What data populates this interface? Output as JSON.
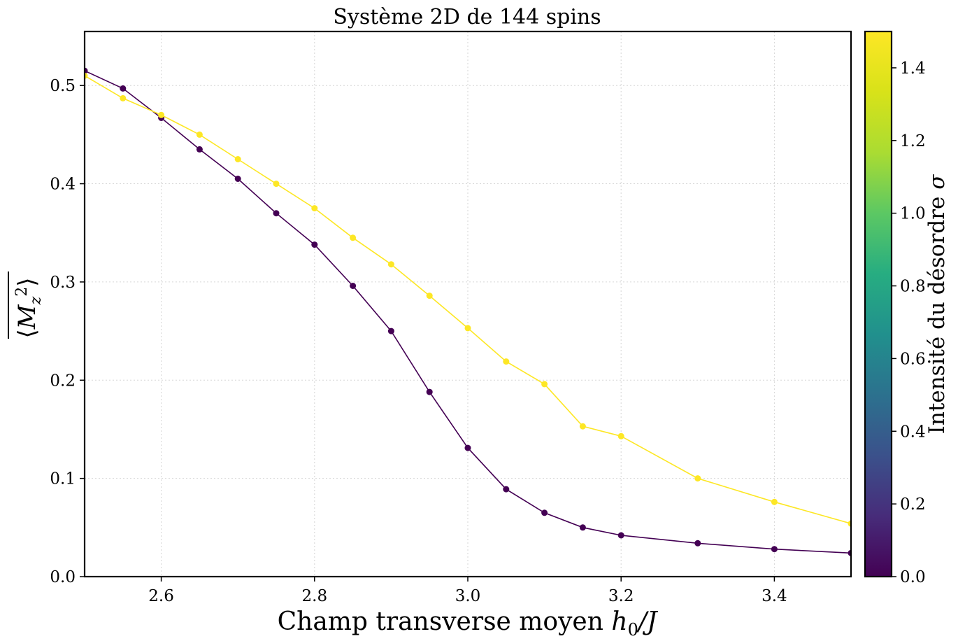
{
  "chart_data": {
    "type": "line",
    "title": "Système 2D de 144 spins",
    "xlabel": "Champ transverse moyen h₀/J",
    "ylabel": "⟨M_z²⟩",
    "xlim": [
      2.5,
      3.5
    ],
    "ylim": [
      0.0,
      0.555
    ],
    "x_ticks": [
      "2.6",
      "2.8",
      "3.0",
      "3.2",
      "3.4"
    ],
    "y_ticks": [
      "0.0",
      "0.1",
      "0.2",
      "0.3",
      "0.4",
      "0.5"
    ],
    "grid": true,
    "colormap": "viridis",
    "colorbar": {
      "label": "Intensité du désordre σ",
      "range": [
        0.0,
        1.5
      ],
      "ticks": [
        "0.0",
        "0.2",
        "0.4",
        "0.6",
        "0.8",
        "1.0",
        "1.2",
        "1.4"
      ]
    },
    "x": [
      2.5,
      2.55,
      2.6,
      2.65,
      2.7,
      2.75,
      2.8,
      2.85,
      2.9,
      2.95,
      3.0,
      3.05,
      3.1,
      3.15,
      3.2,
      3.3,
      3.4,
      3.5
    ],
    "series": [
      {
        "sigma": 0.0,
        "values": [
          0.515,
          0.497,
          0.467,
          0.435,
          0.405,
          0.37,
          0.338,
          0.296,
          0.25,
          0.188,
          0.131,
          0.089,
          0.065,
          0.05,
          0.042,
          0.034,
          0.028,
          0.024
        ]
      },
      {
        "sigma": 1.5,
        "values": [
          0.51,
          0.487,
          0.47,
          0.45,
          0.425,
          0.4,
          0.375,
          0.345,
          0.318,
          0.286,
          0.253,
          0.219,
          0.196,
          0.153,
          0.143,
          0.1,
          0.076,
          0.054
        ]
      }
    ]
  }
}
